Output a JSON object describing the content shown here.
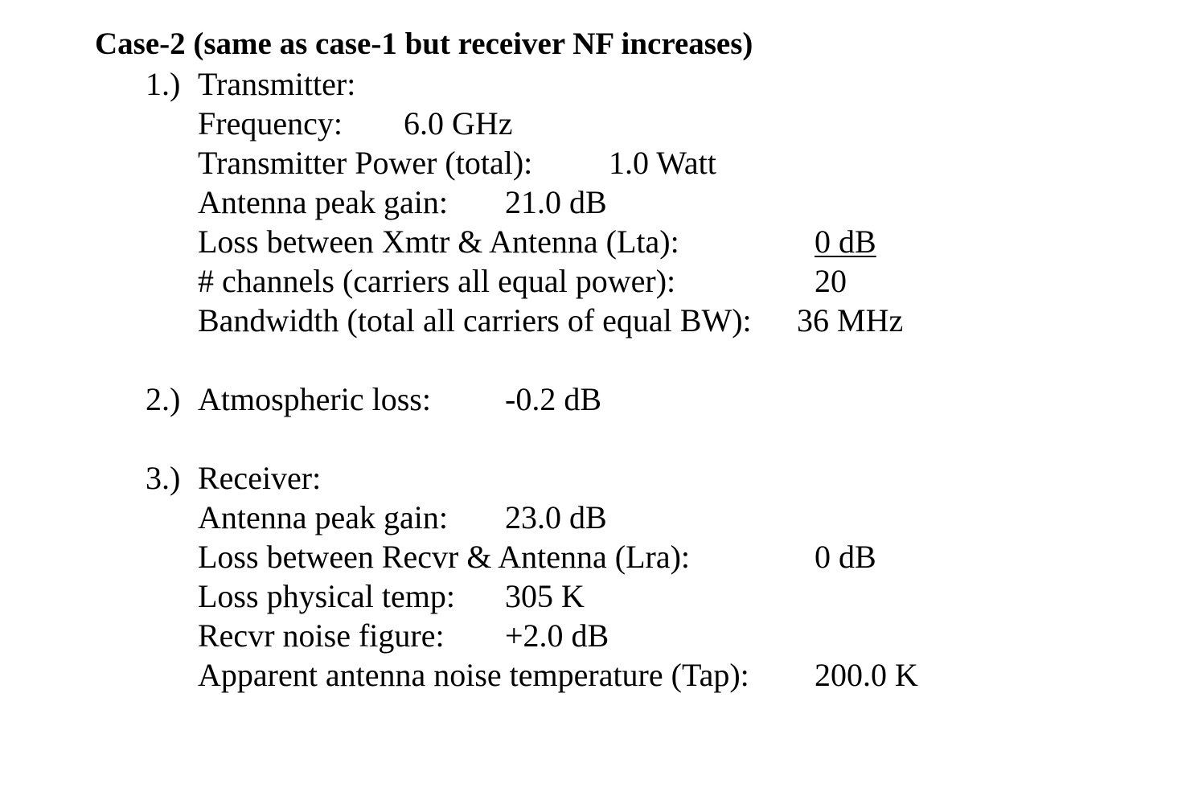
{
  "title": "Case-2 (same as case-1 but receiver NF increases)",
  "sections": [
    {
      "number": "1.)",
      "heading": "Transmitter:",
      "rows": [
        {
          "label": "Frequency:",
          "value": "6.0 GHz"
        },
        {
          "label": "Transmitter Power (total):",
          "value": "1.0 Watt"
        },
        {
          "label": "Antenna peak gain:",
          "value": "21.0 dB"
        },
        {
          "label": "Loss between Xmtr & Antenna (Lta):",
          "value": "0 dB"
        },
        {
          "label": "# channels (carriers all equal power):",
          "value": "20"
        },
        {
          "label": "Bandwidth (total all carriers of equal BW):",
          "value": "36 MHz"
        }
      ]
    },
    {
      "number": "2.)",
      "heading": "Atmospheric loss:",
      "value": "-0.2 dB"
    },
    {
      "number": "3.)",
      "heading": "Receiver:",
      "rows": [
        {
          "label": "Antenna peak gain:",
          "value": "23.0 dB"
        },
        {
          "label": "Loss between Recvr & Antenna (Lra):",
          "value": "0 dB"
        },
        {
          "label": "Loss physical temp:",
          "value": "305 K"
        },
        {
          "label": "Recvr noise figure:",
          "value": "+2.0 dB"
        },
        {
          "label": "Apparent antenna noise temperature (Tap):",
          "value": "200.0 K"
        }
      ]
    }
  ]
}
